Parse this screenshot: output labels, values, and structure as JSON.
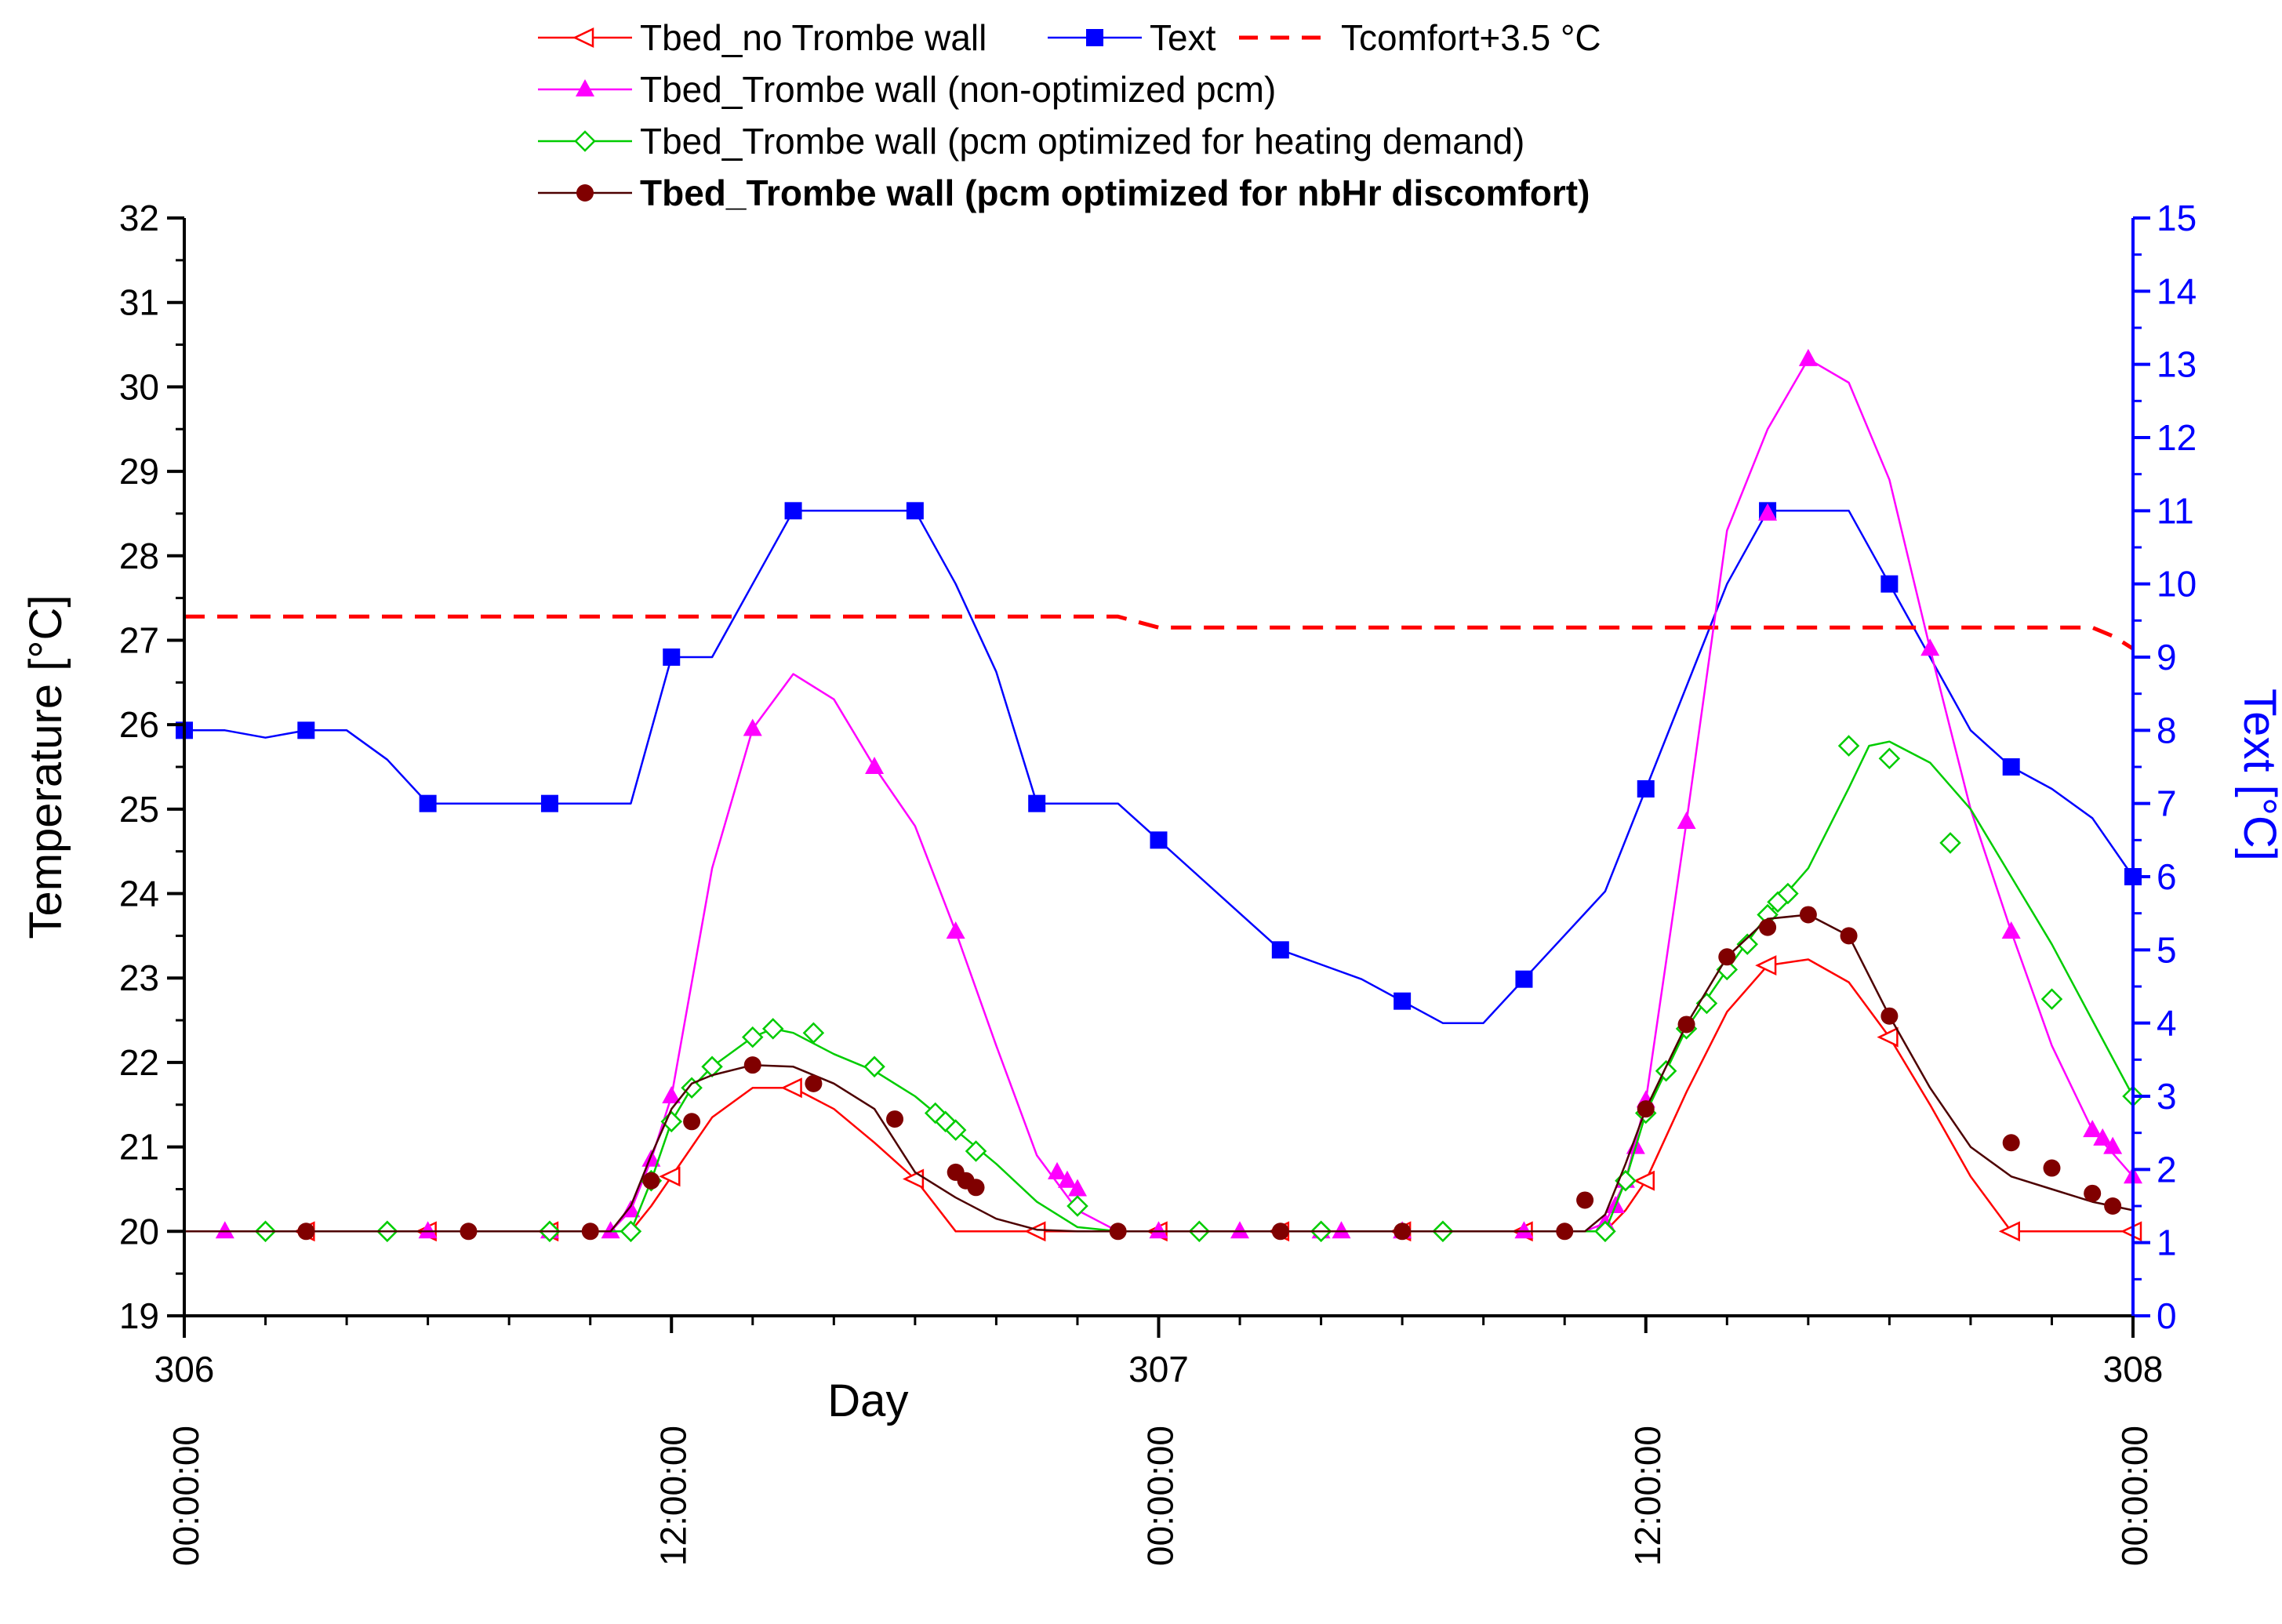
{
  "chart_data": {
    "type": "line",
    "title": "",
    "xlabel": "Day",
    "ylabel": "Temperature [°C]",
    "y2label": "Text [°C]",
    "xlim": [
      306,
      308
    ],
    "ylim": [
      19,
      32
    ],
    "y2lim": [
      0,
      15
    ],
    "x_major_ticks": [
      306,
      307,
      308
    ],
    "x_major_labels": [
      "306",
      "307",
      "308"
    ],
    "x_time_ticks": [
      306,
      306.5,
      307,
      307.5,
      308
    ],
    "x_time_labels": [
      "00:00:00",
      "12:00:00",
      "00:00:00",
      "12:00:00",
      "00:00:00"
    ],
    "y_ticks": [
      19,
      20,
      21,
      22,
      23,
      24,
      25,
      26,
      27,
      28,
      29,
      30,
      31,
      32
    ],
    "y2_ticks": [
      0,
      1,
      2,
      3,
      4,
      5,
      6,
      7,
      8,
      9,
      10,
      11,
      12,
      13,
      14,
      15
    ],
    "legend_position": "top",
    "colors": {
      "no_trombe": "#ff0000",
      "text": "#0000ff",
      "comfort": "#ff0000",
      "non_optimized": "#ff00ff",
      "heating_opt": "#00cc00",
      "nbhr_opt": "#800000",
      "nbhr_line": "#4d0000",
      "axis": "#000000",
      "axis_right": "#0000ff"
    },
    "series": [
      {
        "name": "Tbed_no Trombe wall",
        "key": "no_trombe",
        "axis": "left",
        "marker": "triangle-left-open",
        "x": [
          306.0,
          306.125,
          306.25,
          306.375,
          306.4583,
          306.4792,
          306.5,
          306.5417,
          306.5833,
          306.625,
          306.6667,
          306.7083,
          306.75,
          306.7917,
          306.8333,
          306.875,
          306.9167,
          306.9583,
          307.0,
          307.125,
          307.25,
          307.375,
          307.4583,
          307.4792,
          307.5,
          307.5417,
          307.5833,
          307.625,
          307.6667,
          307.7083,
          307.75,
          307.7917,
          307.8333,
          307.875,
          307.9167,
          307.9583,
          308.0
        ],
        "y": [
          20.0,
          20.0,
          20.0,
          20.0,
          20.0,
          20.3,
          20.65,
          21.35,
          21.7,
          21.7,
          21.45,
          21.05,
          20.62,
          20.0,
          20.0,
          20.0,
          20.0,
          20.0,
          20.0,
          20.0,
          20.0,
          20.0,
          20.0,
          20.25,
          20.6,
          21.65,
          22.6,
          23.15,
          23.22,
          22.95,
          22.3,
          21.5,
          20.65,
          20.0,
          20.0,
          20.0,
          20.0
        ],
        "markers_x": [
          306.125,
          306.25,
          306.375,
          306.5,
          306.625,
          306.75,
          306.875,
          307.0,
          307.125,
          307.25,
          307.375,
          307.5,
          307.625,
          307.75,
          307.875,
          308.0
        ],
        "markers_y": [
          20.0,
          20.0,
          20.0,
          20.65,
          21.7,
          20.62,
          20.0,
          20.0,
          20.0,
          20.0,
          20.0,
          20.6,
          23.15,
          22.3,
          20.0,
          20.0
        ]
      },
      {
        "name": "Text",
        "key": "text",
        "axis": "right",
        "marker": "square",
        "x": [
          306.0,
          306.0417,
          306.0833,
          306.125,
          306.1667,
          306.2083,
          306.25,
          306.2917,
          306.3333,
          306.375,
          306.4167,
          306.4583,
          306.5,
          306.5417,
          306.5833,
          306.625,
          306.6667,
          306.7083,
          306.75,
          306.7917,
          306.8333,
          306.875,
          306.9167,
          306.9583,
          307.0,
          307.0417,
          307.0833,
          307.125,
          307.1667,
          307.2083,
          307.25,
          307.2917,
          307.3333,
          307.375,
          307.4167,
          307.4583,
          307.5,
          307.5417,
          307.5833,
          307.625,
          307.6667,
          307.7083,
          307.75,
          307.7917,
          307.8333,
          307.875,
          307.9167,
          307.9583,
          308.0
        ],
        "y": [
          8.0,
          8.0,
          7.9,
          8.0,
          8.0,
          7.6,
          7.0,
          7.0,
          7.0,
          7.0,
          7.0,
          7.0,
          9.0,
          9.0,
          10.0,
          11.0,
          11.0,
          11.0,
          11.0,
          10.0,
          8.8,
          7.0,
          7.0,
          7.0,
          6.5,
          6.0,
          5.5,
          5.0,
          4.8,
          4.6,
          4.3,
          4.0,
          4.0,
          4.6,
          5.2,
          5.8,
          7.2,
          8.6,
          10.0,
          11.0,
          11.0,
          11.0,
          10.0,
          9.0,
          8.0,
          7.5,
          7.2,
          6.8,
          6.0
        ],
        "markers_x": [
          306.0,
          306.125,
          306.25,
          306.375,
          306.5,
          306.625,
          306.75,
          306.875,
          307.0,
          307.125,
          307.25,
          307.375,
          307.5,
          307.625,
          307.75,
          307.875,
          308.0
        ],
        "markers_y": [
          8.0,
          8.0,
          7.0,
          7.0,
          9.0,
          11.0,
          11.0,
          7.0,
          6.5,
          5.0,
          4.3,
          4.6,
          7.2,
          11.0,
          10.0,
          7.5,
          6.0
        ]
      },
      {
        "name": "Tcomfort+3.5 °C",
        "key": "comfort",
        "axis": "left",
        "marker": "none",
        "dashed": true,
        "x": [
          306.0,
          306.5,
          306.9583,
          307.0,
          307.5,
          307.9583,
          307.9792,
          308.0
        ],
        "y": [
          27.28,
          27.28,
          27.28,
          27.15,
          27.15,
          27.15,
          27.05,
          26.9
        ]
      },
      {
        "name": "Tbed_Trombe wall (non-optimized pcm)",
        "key": "non_optimized",
        "axis": "left",
        "marker": "triangle-up",
        "x": [
          306.0,
          306.4375,
          306.4583,
          306.4792,
          306.5,
          306.5417,
          306.5833,
          306.625,
          306.6667,
          306.7083,
          306.75,
          306.7917,
          306.8333,
          306.875,
          306.9167,
          306.9583,
          307.0,
          307.4375,
          307.4583,
          307.4792,
          307.5,
          307.5417,
          307.5833,
          307.625,
          307.6667,
          307.7083,
          307.75,
          307.7917,
          307.8333,
          307.875,
          307.9167,
          307.9583,
          308.0
        ],
        "y": [
          20.0,
          20.0,
          20.25,
          20.85,
          21.6,
          24.3,
          25.95,
          26.6,
          26.3,
          25.5,
          24.8,
          23.55,
          22.2,
          20.9,
          20.25,
          20.0,
          20.0,
          20.0,
          20.1,
          20.6,
          21.55,
          24.85,
          28.3,
          29.5,
          30.33,
          30.05,
          28.9,
          26.9,
          25.0,
          23.55,
          22.2,
          21.2,
          20.65
        ],
        "markers_x": [
          306.0417,
          306.25,
          306.375,
          306.4375,
          306.4583,
          306.4792,
          306.5,
          306.5833,
          306.7083,
          306.7917,
          306.8958,
          306.9062,
          306.9167,
          307.0,
          307.0833,
          307.1667,
          307.1875,
          307.25,
          307.375,
          307.4583,
          307.4688,
          307.4792,
          307.4896,
          307.5,
          307.5417,
          307.625,
          307.6667,
          307.7917,
          307.875,
          307.9583,
          307.9688,
          307.9792,
          308.0
        ],
        "markers_y": [
          20.0,
          20.0,
          20.0,
          20.0,
          20.25,
          20.85,
          21.6,
          25.95,
          25.5,
          23.55,
          20.7,
          20.6,
          20.5,
          20.0,
          20.0,
          20.0,
          20.0,
          20.0,
          20.0,
          20.1,
          20.3,
          20.6,
          21.0,
          21.55,
          24.85,
          28.5,
          30.33,
          26.9,
          23.55,
          21.2,
          21.1,
          21.0,
          20.65
        ]
      },
      {
        "name": "Tbed_Trombe wall (pcm optimized for heating demand)",
        "key": "heating_opt",
        "axis": "left",
        "marker": "diamond-open",
        "x": [
          306.0,
          306.4583,
          306.4792,
          306.5,
          306.5208,
          306.5417,
          306.5833,
          306.6042,
          306.625,
          306.6667,
          306.7083,
          306.75,
          306.7917,
          306.8333,
          306.875,
          306.9167,
          306.9583,
          307.0,
          307.4583,
          307.4792,
          307.5,
          307.5208,
          307.5417,
          307.5833,
          307.625,
          307.6667,
          307.7083,
          307.7292,
          307.75,
          307.7917,
          307.8333,
          307.875,
          307.9167,
          307.9583,
          308.0
        ],
        "y": [
          20.0,
          20.0,
          20.6,
          21.3,
          21.7,
          21.95,
          22.3,
          22.4,
          22.35,
          22.1,
          21.9,
          21.6,
          21.2,
          20.8,
          20.35,
          20.05,
          20.0,
          20.0,
          20.0,
          20.6,
          21.4,
          21.9,
          22.4,
          23.1,
          23.75,
          24.3,
          25.25,
          25.75,
          25.8,
          25.55,
          25.0,
          24.2,
          23.4,
          22.5,
          21.6
        ],
        "markers_x": [
          306.0833,
          306.2083,
          306.375,
          306.4583,
          306.4792,
          306.5,
          306.5208,
          306.5417,
          306.5833,
          306.6042,
          306.6458,
          306.7083,
          306.7708,
          306.7812,
          306.7917,
          306.8125,
          306.9167,
          307.0417,
          307.1667,
          307.2917,
          307.4583,
          307.4792,
          307.5,
          307.5208,
          307.5417,
          307.5625,
          307.5833,
          307.6042,
          307.625,
          307.6354,
          307.6458,
          307.7083,
          307.75,
          307.8125,
          307.9167,
          308.0
        ],
        "markers_y": [
          20.0,
          20.0,
          20.0,
          20.0,
          20.6,
          21.3,
          21.7,
          21.95,
          22.3,
          22.4,
          22.35,
          21.95,
          21.4,
          21.3,
          21.2,
          20.95,
          20.3,
          20.0,
          20.0,
          20.0,
          20.0,
          20.6,
          21.4,
          21.9,
          22.4,
          22.7,
          23.1,
          23.4,
          23.75,
          23.9,
          24.0,
          25.75,
          25.6,
          24.6,
          22.75,
          21.6
        ]
      },
      {
        "name": "Tbed_Trombe wall (pcm optimized for nbHr discomfort)",
        "key": "nbhr_opt",
        "axis": "left",
        "marker": "circle",
        "x": [
          306.0,
          306.4375,
          306.4583,
          306.4792,
          306.5,
          306.5208,
          306.5417,
          306.5833,
          306.625,
          306.6667,
          306.7083,
          306.75,
          306.7917,
          306.8333,
          306.875,
          306.9167,
          306.9583,
          307.0,
          307.4375,
          307.4583,
          307.4792,
          307.5,
          307.5208,
          307.5417,
          307.5833,
          307.625,
          307.6667,
          307.7083,
          307.75,
          307.7917,
          307.8333,
          307.875,
          307.9167,
          307.9583,
          308.0
        ],
        "y": [
          20.0,
          20.0,
          20.3,
          20.9,
          21.45,
          21.75,
          21.85,
          21.97,
          21.95,
          21.75,
          21.45,
          20.7,
          20.4,
          20.15,
          20.02,
          20.0,
          20.0,
          20.0,
          20.0,
          20.2,
          20.8,
          21.45,
          21.95,
          22.45,
          23.25,
          23.7,
          23.75,
          23.5,
          22.55,
          21.7,
          21.0,
          20.65,
          20.5,
          20.35,
          20.25
        ],
        "markers_x": [
          306.125,
          306.2917,
          306.4167,
          306.4792,
          306.5208,
          306.5833,
          306.6458,
          306.7292,
          306.7917,
          306.8021,
          306.8125,
          306.9583,
          307.125,
          307.25,
          307.4167,
          307.4375,
          307.5,
          307.5417,
          307.5833,
          307.625,
          307.6667,
          307.7083,
          307.75,
          307.875,
          307.9167,
          307.9583,
          307.9792
        ],
        "markers_y": [
          20.0,
          20.0,
          20.0,
          20.6,
          21.3,
          21.97,
          21.75,
          21.33,
          20.7,
          20.6,
          20.52,
          20.0,
          20.0,
          20.0,
          20.0,
          20.37,
          21.45,
          22.45,
          23.25,
          23.6,
          23.75,
          23.5,
          22.55,
          21.05,
          20.75,
          20.45,
          20.3
        ]
      }
    ]
  }
}
